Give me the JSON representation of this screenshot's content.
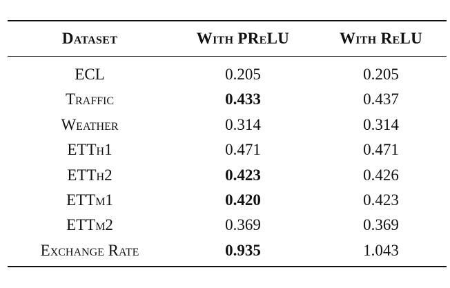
{
  "table": {
    "headers": [
      "Dataset",
      "With PReLU",
      "With ReLU"
    ],
    "rows": [
      {
        "dataset": "ECL",
        "prelu": "0.205",
        "relu": "0.205",
        "prelu_bold": false,
        "relu_bold": false
      },
      {
        "dataset": "Traffic",
        "prelu": "0.433",
        "relu": "0.437",
        "prelu_bold": true,
        "relu_bold": false
      },
      {
        "dataset": "Weather",
        "prelu": "0.314",
        "relu": "0.314",
        "prelu_bold": false,
        "relu_bold": false
      },
      {
        "dataset": "ETTh1",
        "prelu": "0.471",
        "relu": "0.471",
        "prelu_bold": false,
        "relu_bold": false
      },
      {
        "dataset": "ETTh2",
        "prelu": "0.423",
        "relu": "0.426",
        "prelu_bold": true,
        "relu_bold": false
      },
      {
        "dataset": "ETTm1",
        "prelu": "0.420",
        "relu": "0.423",
        "prelu_bold": true,
        "relu_bold": false
      },
      {
        "dataset": "ETTm2",
        "prelu": "0.369",
        "relu": "0.369",
        "prelu_bold": false,
        "relu_bold": false
      },
      {
        "dataset": "Exchange Rate",
        "prelu": "0.935",
        "relu": "1.043",
        "prelu_bold": true,
        "relu_bold": false
      }
    ]
  }
}
